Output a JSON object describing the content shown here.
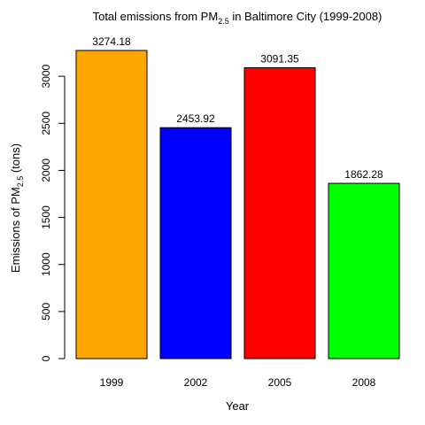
{
  "chart_data": {
    "type": "bar",
    "title": "Total emissions from PM2.5 in Baltimore City (1999-2008)",
    "title_parts": {
      "before": "Total emissions from PM",
      "subscript": "2.5",
      "after": " in Baltimore City (1999-2008)"
    },
    "xlabel": "Year",
    "ylabel": "Emissions of PM2.5 (tons)",
    "ylabel_parts": {
      "before": "Emissions of PM",
      "subscript": "2.5",
      "after": " (tons)"
    },
    "categories": [
      "1999",
      "2002",
      "2005",
      "2008"
    ],
    "values": [
      3274.18,
      2453.92,
      3091.35,
      1862.28
    ],
    "value_labels": [
      "3274.18",
      "2453.92",
      "3091.35",
      "1862.28"
    ],
    "colors": [
      "#FFA500",
      "#0000FF",
      "#FF0000",
      "#00FF00"
    ],
    "y_ticks": [
      0,
      500,
      1000,
      1500,
      2000,
      2500,
      3000
    ],
    "ylim": [
      0,
      3274.18
    ],
    "grid": false,
    "legend": "none"
  }
}
